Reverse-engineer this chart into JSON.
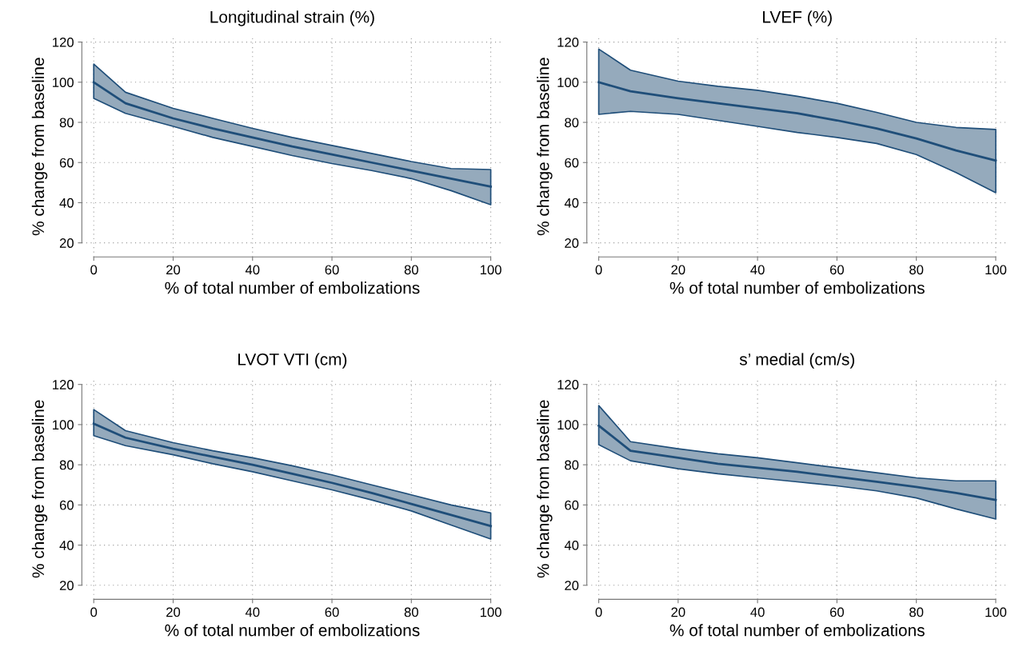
{
  "chart_data": [
    {
      "type": "line",
      "title": "Longitudinal strain (%)",
      "xlabel": "% of total number of embolizations",
      "ylabel": "% change from baseline",
      "x": [
        0,
        8,
        20,
        30,
        40,
        50,
        60,
        70,
        80,
        90,
        100
      ],
      "xlim": [
        -3,
        103
      ],
      "ylim": [
        13,
        123
      ],
      "xticks": [
        0,
        20,
        40,
        60,
        80,
        100
      ],
      "yticks": [
        20,
        40,
        60,
        80,
        100,
        120
      ],
      "grid": true,
      "marker": "none",
      "line_style": "solid",
      "series": [
        {
          "color": "#1f4e79",
          "values": [
            100,
            89.5,
            82,
            77,
            72.5,
            68,
            64,
            60,
            56,
            52,
            48
          ],
          "upper": [
            109,
            95,
            87,
            82,
            77,
            72.5,
            68.5,
            64.5,
            60.5,
            57,
            56.5
          ],
          "lower": [
            92,
            84.5,
            78,
            72.5,
            68,
            63.5,
            59.5,
            56,
            52,
            46,
            39
          ]
        }
      ]
    },
    {
      "type": "line",
      "title": "LVEF (%)",
      "xlabel": "% of total number of embolizations",
      "ylabel": "% change from baseline",
      "x": [
        0,
        8,
        20,
        30,
        40,
        50,
        60,
        70,
        80,
        90,
        100
      ],
      "xlim": [
        -3,
        103
      ],
      "ylim": [
        13,
        123
      ],
      "xticks": [
        0,
        20,
        40,
        60,
        80,
        100
      ],
      "yticks": [
        20,
        40,
        60,
        80,
        100,
        120
      ],
      "grid": true,
      "marker": "none",
      "line_style": "solid",
      "series": [
        {
          "color": "#1f4e79",
          "values": [
            100,
            95.5,
            92,
            89.5,
            87,
            84.5,
            81,
            77,
            72,
            66,
            61
          ],
          "upper": [
            116.5,
            106,
            100.5,
            98,
            96,
            93,
            89.5,
            85,
            80,
            77.5,
            76.5
          ],
          "lower": [
            84,
            85.5,
            84,
            81,
            78,
            75,
            72.5,
            69.5,
            64,
            55,
            45
          ]
        }
      ]
    },
    {
      "type": "line",
      "title": "LVOT VTI (cm)",
      "xlabel": "% of total number of embolizations",
      "ylabel": "% change from baseline",
      "x": [
        0,
        8,
        20,
        30,
        40,
        50,
        60,
        70,
        80,
        90,
        100
      ],
      "xlim": [
        -3,
        103
      ],
      "ylim": [
        13,
        123
      ],
      "xticks": [
        0,
        20,
        40,
        60,
        80,
        100
      ],
      "yticks": [
        20,
        40,
        60,
        80,
        100,
        120
      ],
      "grid": true,
      "marker": "none",
      "line_style": "solid",
      "series": [
        {
          "color": "#1f4e79",
          "values": [
            100.5,
            93.5,
            88,
            84,
            80,
            75.5,
            71,
            66,
            60.5,
            55,
            49.5
          ],
          "upper": [
            107.5,
            97,
            91,
            87,
            83.5,
            79.5,
            75,
            70,
            65,
            60,
            56
          ],
          "lower": [
            94.5,
            89.5,
            85,
            80.5,
            76.5,
            72,
            67.5,
            62.5,
            57,
            50,
            43
          ]
        }
      ]
    },
    {
      "type": "line",
      "title": "s’ medial (cm/s)",
      "xlabel": "% of total number of embolizations",
      "ylabel": "% change from baseline",
      "x": [
        0,
        8,
        20,
        30,
        40,
        50,
        60,
        70,
        80,
        90,
        100
      ],
      "xlim": [
        -3,
        103
      ],
      "ylim": [
        13,
        123
      ],
      "xticks": [
        0,
        20,
        40,
        60,
        80,
        100
      ],
      "yticks": [
        20,
        40,
        60,
        80,
        100,
        120
      ],
      "grid": true,
      "marker": "none",
      "line_style": "solid",
      "series": [
        {
          "color": "#1f4e79",
          "values": [
            99.5,
            87,
            83.5,
            80.5,
            78.5,
            76.5,
            74,
            71.5,
            69,
            66,
            62.5
          ],
          "upper": [
            109.5,
            91.5,
            88,
            85.5,
            83.5,
            81,
            78.5,
            76,
            73.5,
            72,
            72
          ],
          "lower": [
            90,
            82,
            78,
            75.5,
            73.5,
            71.5,
            69.5,
            67,
            63.5,
            58,
            53
          ]
        }
      ]
    }
  ]
}
